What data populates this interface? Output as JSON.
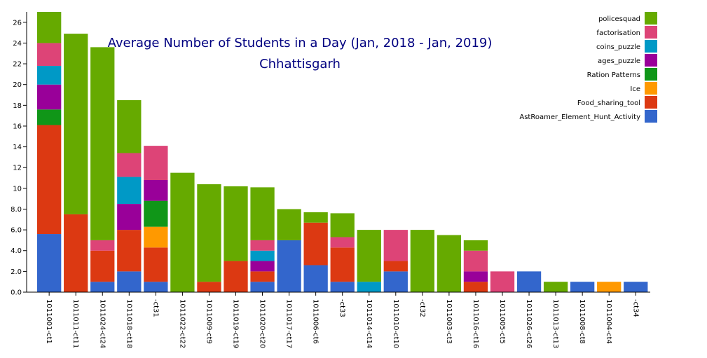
{
  "chart_data": {
    "type": "bar",
    "stacked": true,
    "title": "Average Number of Students in a Day (Jan, 2018 - Jan, 2019)",
    "subtitle": "Chhattisgarh",
    "ylim": [
      0,
      27
    ],
    "yticks": [
      "0.0",
      "2.0",
      "4.0",
      "6.0",
      "8.0",
      "10",
      "12",
      "14",
      "16",
      "18",
      "20",
      "22",
      "24",
      "26"
    ],
    "categories": [
      "1011001-ct1",
      "1011011-ct11",
      "1011024-ct24",
      "1011018-ct18",
      "-ct31",
      "1011022-ct22",
      "1011009-ct9",
      "1011019-ct19",
      "1011020-ct20",
      "1011017-ct17",
      "1011006-ct6",
      "-ct33",
      "1011014-ct14",
      "1011010-ct10",
      "-ct32",
      "1011003-ct3",
      "1011016-ct16",
      "1011005-ct5",
      "1011026-ct26",
      "1011013-ct13",
      "1011008-ct8",
      "1011004-ct4",
      "-ct34"
    ],
    "legend_position": "top-right",
    "series": [
      {
        "name": "AstRoamer_Element_Hunt_Activity",
        "color": "#3366cc",
        "values": [
          5.6,
          0,
          1.0,
          2.0,
          1.0,
          0,
          0,
          0,
          1.0,
          5.0,
          2.6,
          1.0,
          0,
          2.0,
          0,
          0,
          0,
          0,
          2.0,
          0,
          1.0,
          0,
          1.0
        ]
      },
      {
        "name": "Food_sharing_tool",
        "color": "#dc3912",
        "values": [
          10.5,
          7.5,
          3.0,
          4.0,
          3.3,
          0,
          1.0,
          3.0,
          1.0,
          0,
          4.1,
          3.3,
          0,
          1.0,
          0,
          0,
          1.0,
          0,
          0,
          0,
          0,
          0,
          0
        ]
      },
      {
        "name": "Ice",
        "color": "#ff9900",
        "values": [
          0,
          0,
          0,
          0,
          2.0,
          0,
          0,
          0,
          0,
          0,
          0,
          0,
          0,
          0,
          0,
          0,
          0,
          0,
          0,
          0,
          0,
          1.0,
          0
        ]
      },
      {
        "name": "Ration Patterns",
        "color": "#109618",
        "values": [
          1.5,
          0,
          0,
          0,
          2.5,
          0,
          0,
          0,
          0,
          0,
          0,
          0,
          0,
          0,
          0,
          0,
          0,
          0,
          0,
          0,
          0,
          0,
          0
        ]
      },
      {
        "name": "ages_puzzle",
        "color": "#990099",
        "values": [
          2.4,
          0,
          0,
          2.5,
          2.0,
          0,
          0,
          0,
          1.0,
          0,
          0,
          0,
          0,
          0,
          0,
          0,
          1.0,
          0,
          0,
          0,
          0,
          0,
          0
        ]
      },
      {
        "name": "coins_puzzle",
        "color": "#0099c6",
        "values": [
          1.8,
          0,
          0,
          2.6,
          0,
          0,
          0,
          0,
          1.0,
          0,
          0,
          0,
          1.0,
          0,
          0,
          0,
          0,
          0,
          0,
          0,
          0,
          0,
          0
        ]
      },
      {
        "name": "factorisation",
        "color": "#dd4477",
        "values": [
          2.2,
          0,
          1.0,
          2.3,
          3.3,
          0,
          0,
          0,
          1.0,
          0,
          0,
          1.0,
          0,
          3.0,
          0,
          0,
          2.0,
          2.0,
          0,
          0,
          0,
          0,
          0
        ]
      },
      {
        "name": "policesquad",
        "color": "#66aa00",
        "values": [
          3.0,
          17.4,
          18.6,
          5.1,
          0,
          11.5,
          9.4,
          7.2,
          5.1,
          3.0,
          1.0,
          2.3,
          5.0,
          0,
          6.0,
          5.5,
          1.0,
          0,
          0,
          1.0,
          0,
          0,
          0
        ]
      }
    ]
  }
}
